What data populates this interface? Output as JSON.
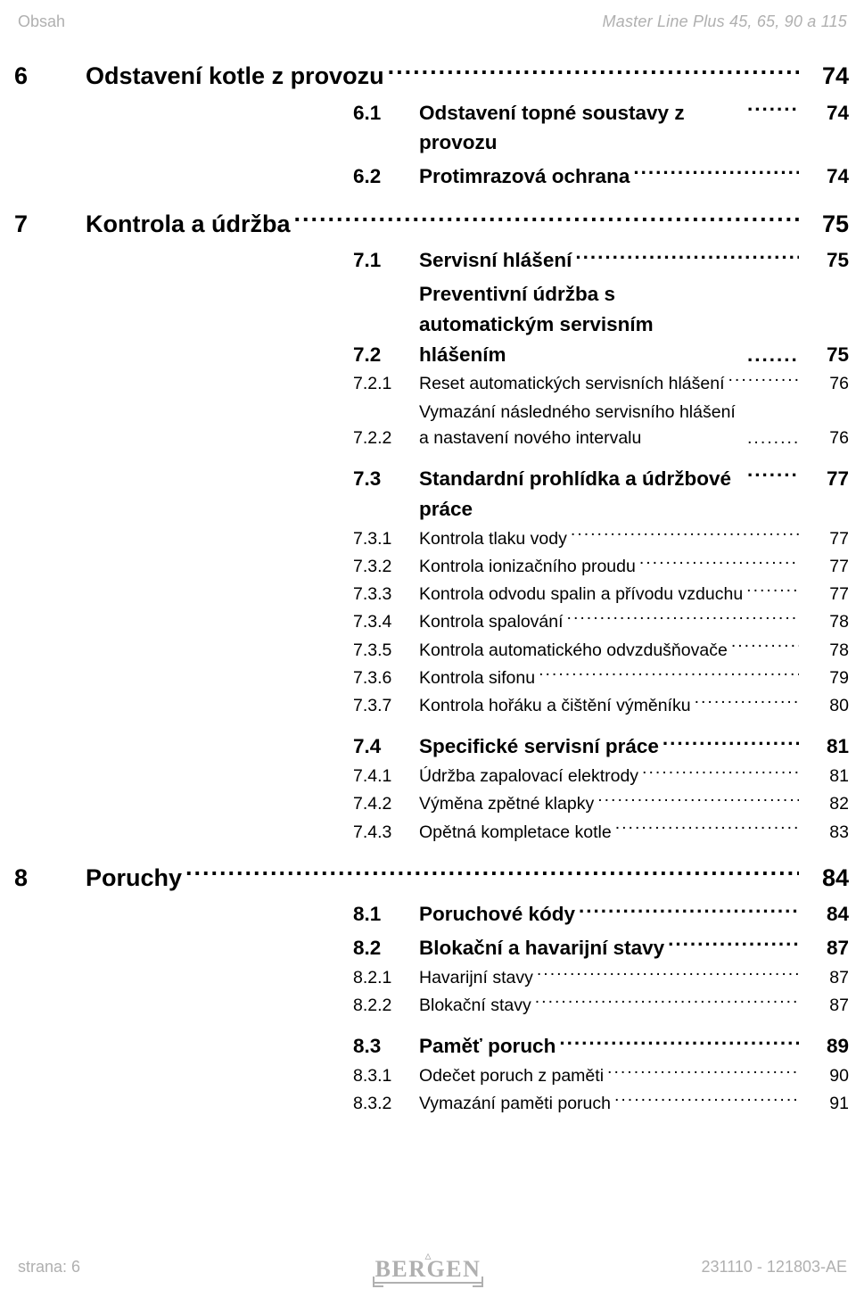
{
  "header": {
    "left": "Obsah",
    "right": "Master Line Plus  45, 65, 90 a 115"
  },
  "footer": {
    "left": "strana: 6",
    "right": "231110 - 121803-AE",
    "logo_text": "BERGEN"
  },
  "toc": [
    {
      "level": 1,
      "num": "6",
      "title": "Odstavení kotle z provozu",
      "page": "74"
    },
    {
      "level": 2,
      "num": "6.1",
      "title": "Odstavení topné soustavy z provozu",
      "page": "74"
    },
    {
      "level": 2,
      "num": "6.2",
      "title": "Protimrazová ochrana",
      "page": "74"
    },
    {
      "level": 1,
      "num": "7",
      "title": "Kontrola a údržba",
      "page": "75",
      "space_before": true
    },
    {
      "level": 2,
      "num": "7.1",
      "title": "Servisní hlášení",
      "page": "75"
    },
    {
      "level": 2,
      "num": "7.2",
      "title": "Preventivní údržba s automatickým servisním hlášením",
      "page": "75",
      "multi": true
    },
    {
      "level": 3,
      "num": "7.2.1",
      "title": "Reset automatických servisních hlášení",
      "page": "76"
    },
    {
      "level": 3,
      "num": "7.2.2",
      "title": "Vymazání následného servisního hlášení a nastavení nového intervalu",
      "page": "76",
      "multi": true
    },
    {
      "level": 2,
      "num": "7.3",
      "title": "Standardní prohlídka a údržbové práce",
      "page": "77",
      "space_before": true
    },
    {
      "level": 3,
      "num": "7.3.1",
      "title": "Kontrola tlaku vody",
      "page": "77"
    },
    {
      "level": 3,
      "num": "7.3.2",
      "title": "Kontrola ionizačního proudu",
      "page": "77"
    },
    {
      "level": 3,
      "num": "7.3.3",
      "title": "Kontrola odvodu spalin a přívodu vzduchu",
      "page": "77"
    },
    {
      "level": 3,
      "num": "7.3.4",
      "title": "Kontrola spalování",
      "page": "78"
    },
    {
      "level": 3,
      "num": "7.3.5",
      "title": "Kontrola automatického odvzdušňovače",
      "page": "78"
    },
    {
      "level": 3,
      "num": "7.3.6",
      "title": "Kontrola sifonu",
      "page": "79"
    },
    {
      "level": 3,
      "num": "7.3.7",
      "title": "Kontrola hořáku a čištění výměníku",
      "page": "80"
    },
    {
      "level": 2,
      "num": "7.4",
      "title": "Specifické servisní práce",
      "page": "81",
      "space_before": true
    },
    {
      "level": 3,
      "num": "7.4.1",
      "title": "Údržba zapalovací elektrody",
      "page": "81"
    },
    {
      "level": 3,
      "num": "7.4.2",
      "title": "Výměna zpětné klapky",
      "page": "82"
    },
    {
      "level": 3,
      "num": "7.4.3",
      "title": "Opětná kompletace kotle",
      "page": "83"
    },
    {
      "level": 1,
      "num": "8",
      "title": "Poruchy",
      "page": "84",
      "space_before": true
    },
    {
      "level": 2,
      "num": "8.1",
      "title": "Poruchové kódy",
      "page": "84"
    },
    {
      "level": 2,
      "num": "8.2",
      "title": "Blokační a havarijní stavy",
      "page": "87"
    },
    {
      "level": 3,
      "num": "8.2.1",
      "title": "Havarijní stavy",
      "page": "87"
    },
    {
      "level": 3,
      "num": "8.2.2",
      "title": "Blokační stavy",
      "page": "87"
    },
    {
      "level": 2,
      "num": "8.3",
      "title": "Paměť poruch",
      "page": "89",
      "space_before": true
    },
    {
      "level": 3,
      "num": "8.3.1",
      "title": "Odečet poruch z paměti",
      "page": "90"
    },
    {
      "level": 3,
      "num": "8.3.2",
      "title": "Vymazání paměti poruch",
      "page": "91"
    }
  ]
}
